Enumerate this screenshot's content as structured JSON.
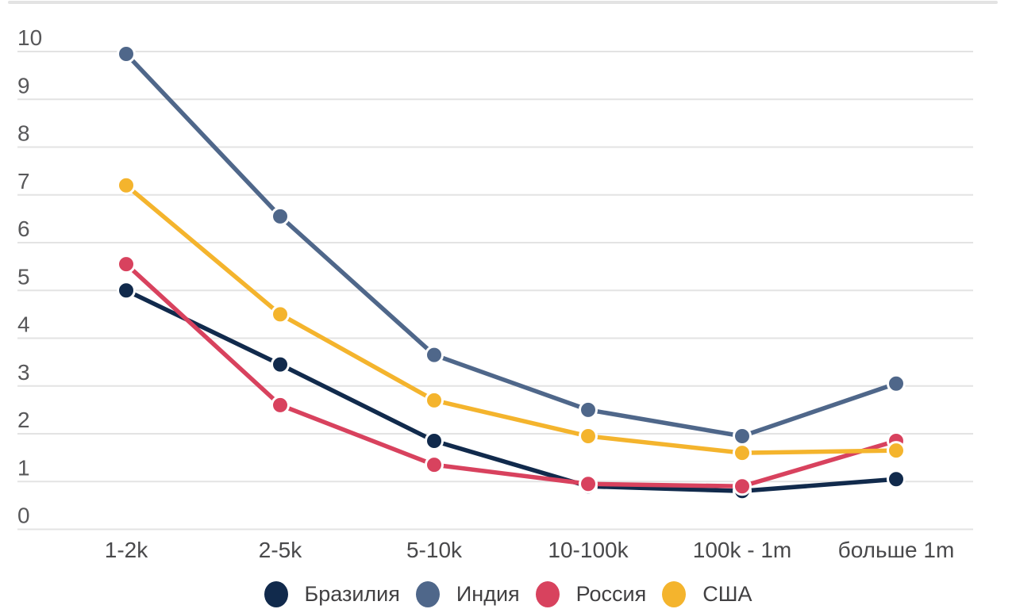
{
  "style": {
    "background": "#ffffff",
    "top_divider_color": "#e3e3e3",
    "gridline_color": "#e3e3e3",
    "ytick_color": "#58585a",
    "xtick_color": "#49494b",
    "legend_text_color": "#414042",
    "marker_halo_color": "#ffffff"
  },
  "chart_data": {
    "type": "line",
    "title": "",
    "xlabel": "",
    "ylabel": "",
    "categories": [
      "1-2k",
      "2-5k",
      "5-10k",
      "10-100k",
      "100k - 1m",
      "больше 1m"
    ],
    "series": [
      {
        "id": "braziliya",
        "name": "Бразилия",
        "color": "#112a4c",
        "values": [
          5.0,
          3.45,
          1.85,
          0.9,
          0.8,
          1.05
        ]
      },
      {
        "id": "indiya",
        "name": "Индия",
        "color": "#4f678a",
        "values": [
          9.95,
          6.55,
          3.65,
          2.5,
          1.95,
          3.05
        ]
      },
      {
        "id": "rossiya",
        "name": "Россия",
        "color": "#d8425e",
        "values": [
          5.55,
          2.6,
          1.35,
          0.95,
          0.9,
          1.85
        ]
      },
      {
        "id": "ssha",
        "name": "США",
        "color": "#f4b42d",
        "values": [
          7.2,
          4.5,
          2.7,
          1.95,
          1.6,
          1.65
        ]
      }
    ],
    "ylim": [
      0,
      10
    ],
    "yticks": [
      0,
      1,
      2,
      3,
      4,
      5,
      6,
      7,
      8,
      9,
      10
    ],
    "grid": true,
    "legend_position": "bottom"
  }
}
